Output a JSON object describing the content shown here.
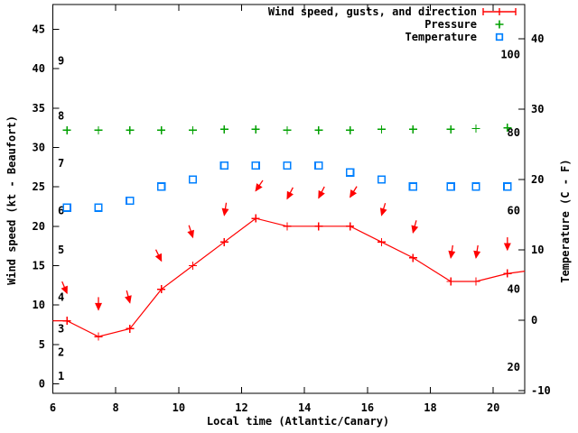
{
  "chart_data": {
    "type": "line",
    "title": "",
    "xlabel": "Local time (Atlantic/Canary)",
    "ylabel": "Wind speed (kt - Beaufort)",
    "y2label": "Temperature (C - F)",
    "grid": false,
    "legend_position": "top-right-inside",
    "background": "#ffffff",
    "axis_color": "#000000",
    "xlim": [
      6,
      21
    ],
    "x_ticks": [
      6,
      8,
      10,
      12,
      14,
      16,
      18,
      20
    ],
    "ylim_left_kt": [
      -1.2,
      48.2
    ],
    "y_ticks_left": [
      0,
      5,
      10,
      15,
      20,
      25,
      30,
      35,
      40,
      45
    ],
    "ylim_right_c": [
      -10.4,
      44.9
    ],
    "y_ticks_right": [
      -10,
      0,
      10,
      20,
      30,
      40
    ],
    "beaufort_scale_labels": [
      {
        "label": "1",
        "kt": 1
      },
      {
        "label": "2",
        "kt": 4
      },
      {
        "label": "3",
        "kt": 7
      },
      {
        "label": "4",
        "kt": 11
      },
      {
        "label": "5",
        "kt": 17
      },
      {
        "label": "6",
        "kt": 22
      },
      {
        "label": "7",
        "kt": 28
      },
      {
        "label": "8",
        "kt": 34
      },
      {
        "label": "9",
        "kt": 41
      }
    ],
    "fahrenheit_scale_labels": [
      {
        "label": "20",
        "f": 20
      },
      {
        "label": "40",
        "f": 40
      },
      {
        "label": "60",
        "f": 60
      },
      {
        "label": "80",
        "f": 80
      },
      {
        "label": "100",
        "f": 100
      }
    ],
    "x": [
      6.45,
      7.45,
      8.45,
      9.45,
      10.45,
      11.45,
      12.45,
      13.45,
      14.45,
      15.45,
      16.45,
      17.45,
      18.65,
      19.45,
      20.45
    ],
    "series": [
      {
        "name": "Wind speed, gusts, and direction",
        "type": "line",
        "marker": "plus",
        "color": "#ff0000",
        "axis": "left",
        "values_kt": [
          8,
          6,
          7,
          12,
          15,
          18,
          21,
          20,
          20,
          20,
          18,
          16,
          13,
          13,
          14
        ],
        "edge_values_kt": {
          "at_x6": 8,
          "at_x21": 14.3
        }
      },
      {
        "name": "Wind gust direction arrows",
        "type": "arrows",
        "color": "#ff0000",
        "axis": "left",
        "arrow_tip_kt": [
          11.5,
          9.4,
          10.3,
          15.6,
          18.6,
          21.4,
          24.5,
          23.5,
          23.6,
          23.7,
          21.4,
          19.2,
          16,
          16,
          17
        ],
        "arrow_lean_deg": [
          23,
          0,
          15,
          26,
          18,
          -9,
          -34,
          -27,
          -27,
          -32,
          -17,
          -15,
          -9,
          -9,
          0
        ]
      },
      {
        "name": "Pressure",
        "type": "scatter",
        "marker": "plus",
        "color": "#00a000",
        "axis": "left",
        "y_position_in_left_axis_kt": [
          32.2,
          32.2,
          32.2,
          32.2,
          32.2,
          32.3,
          32.3,
          32.2,
          32.2,
          32.2,
          32.3,
          32.3,
          32.3,
          32.4,
          32.5
        ]
      },
      {
        "name": "Temperature",
        "type": "scatter",
        "marker": "open-square",
        "color": "#0080ff",
        "axis": "right",
        "values_c": [
          16,
          16,
          17,
          19,
          20,
          22,
          22,
          22,
          22,
          21,
          20,
          19,
          19,
          19,
          19
        ]
      }
    ],
    "legend": [
      {
        "label": "Wind speed, gusts, and direction",
        "marker": "errorbar-plus",
        "color": "#ff0000"
      },
      {
        "label": "Pressure",
        "marker": "plus",
        "color": "#00a000"
      },
      {
        "label": "Temperature",
        "marker": "open-square",
        "color": "#0080ff"
      }
    ]
  }
}
